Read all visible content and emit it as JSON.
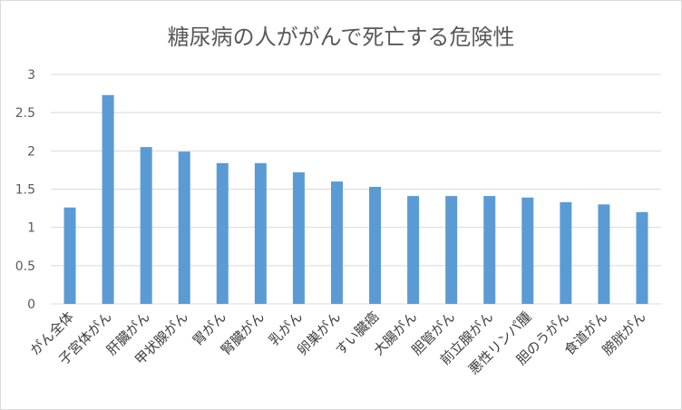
{
  "chart_data": {
    "type": "bar",
    "title": "糖尿病の人ががんで死亡する危険性",
    "xlabel": "",
    "ylabel": "",
    "ylim": [
      0,
      3
    ],
    "yticks": [
      "0",
      "0.5",
      "1",
      "1.5",
      "2",
      "2.5",
      "3"
    ],
    "grid": true,
    "legend": "none",
    "bar_color": "#5b9bd5",
    "grid_color": "#d9d9d9",
    "categories": [
      "がん全体",
      "子宮体がん",
      "肝臓がん",
      "甲状腺がん",
      "胃がん",
      "腎臓がん",
      "乳がん",
      "卵巣がん",
      "すい臓癌",
      "大腸がん",
      "胆管がん",
      "前立腺がん",
      "悪性リンパ腫",
      "胆のうがん",
      "食道がん",
      "膀胱がん"
    ],
    "values": [
      1.26,
      2.73,
      2.05,
      1.99,
      1.84,
      1.84,
      1.72,
      1.6,
      1.53,
      1.41,
      1.41,
      1.41,
      1.39,
      1.33,
      1.3,
      1.2
    ]
  }
}
